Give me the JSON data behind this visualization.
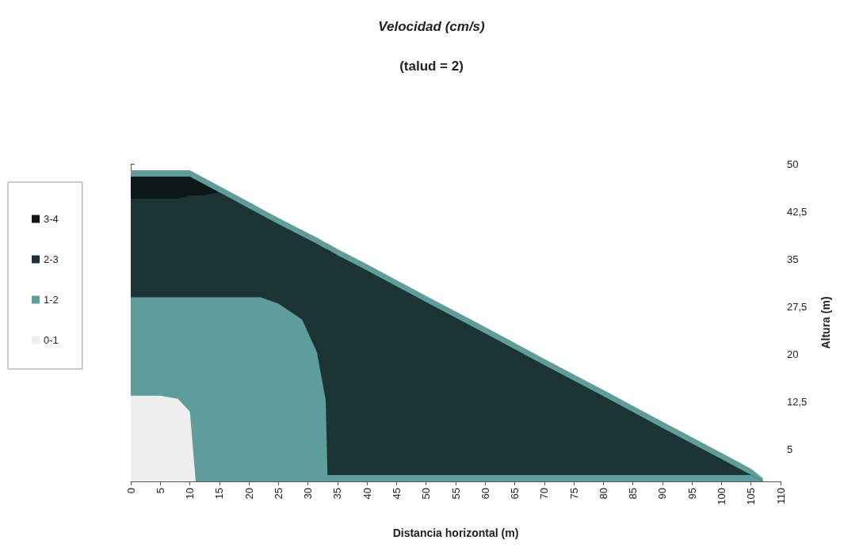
{
  "chart_data": {
    "type": "area",
    "stacked": true,
    "title": "Velocidad (cm/s)",
    "subtitle": "(talud = 2)",
    "xlabel": "Distancia horizontal (m)",
    "ylabel": "Altura (m)",
    "x": [
      0,
      5,
      8,
      10,
      11,
      12,
      15,
      20,
      22,
      25,
      29,
      31.5,
      33,
      33.3,
      35,
      40,
      50,
      60,
      70,
      80,
      90,
      100,
      105,
      107
    ],
    "series": [
      {
        "name": "0-1",
        "color": "#eeeeee",
        "values": [
          13.5,
          13.5,
          13,
          11,
          0,
          0,
          0,
          0,
          0,
          0,
          0,
          0,
          0,
          0,
          0,
          0,
          0,
          0,
          0,
          0,
          0,
          0,
          0,
          0
        ]
      },
      {
        "name": "1-2",
        "color": "#5f9d9d",
        "values": [
          15.5,
          15.5,
          16,
          18,
          29,
          29,
          29,
          29,
          29,
          28,
          25.5,
          20.4,
          12.8,
          1,
          1,
          1,
          1,
          1,
          1,
          1,
          1,
          1,
          1,
          0
        ]
      },
      {
        "name": "2-3",
        "color": "#1c3434",
        "values": [
          15.5,
          15.5,
          15.5,
          16,
          16,
          16,
          16.5,
          14,
          13,
          12.5,
          13.1,
          17,
          23.8,
          35.5,
          34.6,
          32.2,
          27.2,
          22.3,
          17.3,
          12.4,
          7.4,
          2.5,
          0,
          0
        ]
      },
      {
        "name": "3-4",
        "color": "#0e1717",
        "values": [
          3.5,
          3.5,
          3.5,
          3,
          2.5,
          2,
          0,
          0,
          0,
          0,
          0,
          0,
          0,
          0,
          0,
          0,
          0,
          0,
          0,
          0,
          0,
          0,
          0,
          0
        ]
      },
      {
        "color": "#5f9d9d",
        "values": [
          1,
          1,
          1,
          1,
          1,
          1,
          1,
          1,
          1,
          1,
          1,
          1,
          1,
          1,
          1,
          1,
          1,
          1,
          1,
          1,
          1,
          1,
          1,
          0.5
        ]
      }
    ],
    "xlim": [
      0,
      110
    ],
    "xticks": [
      0,
      5,
      10,
      15,
      20,
      25,
      30,
      35,
      40,
      45,
      50,
      55,
      60,
      65,
      70,
      75,
      80,
      85,
      90,
      95,
      100,
      105,
      110
    ],
    "ylim": [
      0,
      50
    ],
    "yticks": [
      5,
      {
        "value": 12.5,
        "label": "12,5"
      },
      20,
      {
        "value": 27.5,
        "label": "27,5"
      },
      35,
      {
        "value": 42.5,
        "label": "42,5"
      },
      50
    ],
    "legend": "left",
    "grid": false
  }
}
